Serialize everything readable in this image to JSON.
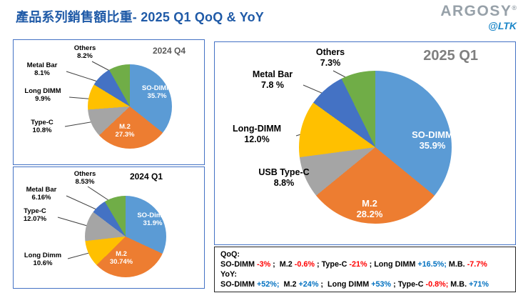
{
  "header": {
    "title": "產品系列銷售額比重- 2025 Q1  QoQ & YoY",
    "brand": "ARGOSY",
    "brand_reg": "®",
    "brand_sub": "@LTK"
  },
  "palette": {
    "so_dimm": "#5B9BD5",
    "m2": "#ED7D31",
    "type_c": "#A5A5A5",
    "long_dimm": "#FFC000",
    "metal_bar": "#4472C4",
    "others": "#70AD47",
    "negative": "#FF0000",
    "positive": "#0070C0",
    "title_blue": "#1F5AA7"
  },
  "chart_data": [
    {
      "type": "pie",
      "title": "2024 Q4",
      "slices": [
        {
          "label": "SO-DIMM",
          "value": 35.7,
          "pct_text": "35.7%",
          "color": "#5B9BD5"
        },
        {
          "label": "M.2",
          "value": 27.3,
          "pct_text": "27.3%",
          "color": "#ED7D31"
        },
        {
          "label": "Type-C",
          "value": 10.8,
          "pct_text": "10.8%",
          "color": "#A5A5A5"
        },
        {
          "label": "Long DIMM",
          "value": 9.9,
          "pct_text": "9.9%",
          "color": "#FFC000"
        },
        {
          "label": "Metal Bar",
          "value": 8.1,
          "pct_text": "8.1%",
          "color": "#4472C4"
        },
        {
          "label": "Others",
          "value": 8.2,
          "pct_text": "8.2%",
          "color": "#70AD47"
        }
      ]
    },
    {
      "type": "pie",
      "title": "2024 Q1",
      "slices": [
        {
          "label": "SO-Dimm",
          "value": 31.9,
          "pct_text": "31.9%",
          "color": "#5B9BD5"
        },
        {
          "label": "M.2",
          "value": 30.74,
          "pct_text": "30.74%",
          "color": "#ED7D31"
        },
        {
          "label": "Long Dimm",
          "value": 10.6,
          "pct_text": "10.6%",
          "color": "#FFC000"
        },
        {
          "label": "Type-C",
          "value": 12.07,
          "pct_text": "12.07%",
          "color": "#A5A5A5"
        },
        {
          "label": "Metal Bar",
          "value": 6.16,
          "pct_text": "6.16%",
          "color": "#4472C4"
        },
        {
          "label": "Others",
          "value": 8.53,
          "pct_text": "8.53%",
          "color": "#70AD47"
        }
      ]
    },
    {
      "type": "pie",
      "title": "2025 Q1",
      "slices": [
        {
          "label": "SO-DIMM",
          "value": 35.9,
          "pct_text": "35.9%",
          "color": "#5B9BD5"
        },
        {
          "label": "M.2",
          "value": 28.2,
          "pct_text": "28.2%",
          "color": "#ED7D31"
        },
        {
          "label": "USB Type-C",
          "value": 8.8,
          "pct_text": "8.8%",
          "color": "#A5A5A5"
        },
        {
          "label": "Long-DIMM",
          "value": 12.0,
          "pct_text": "12.0%",
          "color": "#FFC000"
        },
        {
          "label": "Metal Bar",
          "value": 7.8,
          "pct_text": "7.8 %",
          "color": "#4472C4"
        },
        {
          "label": "Others",
          "value": 7.3,
          "pct_text": "7.3%",
          "color": "#70AD47"
        }
      ]
    }
  ],
  "footer": {
    "qoq_label": "QoQ:",
    "qoq_segments": [
      {
        "t": "SO-DIMM ",
        "c": "#000000"
      },
      {
        "t": "-3%",
        "c": "#FF0000"
      },
      {
        "t": " ;  M.2 ",
        "c": "#000000"
      },
      {
        "t": "-0.6%",
        "c": "#FF0000"
      },
      {
        "t": " ; Type-C ",
        "c": "#000000"
      },
      {
        "t": "-21%",
        "c": "#FF0000"
      },
      {
        "t": " ; Long DIMM ",
        "c": "#000000"
      },
      {
        "t": "+16.5%;",
        "c": "#0070C0"
      },
      {
        "t": " M.B. ",
        "c": "#000000"
      },
      {
        "t": "-7.7%",
        "c": "#FF0000"
      }
    ],
    "yoy_label": "YoY:",
    "yoy_segments": [
      {
        "t": "SO-DIMM ",
        "c": "#000000"
      },
      {
        "t": "+52%;",
        "c": "#0070C0"
      },
      {
        "t": "  M.2 ",
        "c": "#000000"
      },
      {
        "t": "+24%",
        "c": "#0070C0"
      },
      {
        "t": " ;  Long DIMM ",
        "c": "#000000"
      },
      {
        "t": "+53%",
        "c": "#0070C0"
      },
      {
        "t": " ; Type-C ",
        "c": "#000000"
      },
      {
        "t": "-0.8%;",
        "c": "#FF0000"
      },
      {
        "t": " M.B. ",
        "c": "#000000"
      },
      {
        "t": "+71%",
        "c": "#0070C0"
      }
    ]
  }
}
